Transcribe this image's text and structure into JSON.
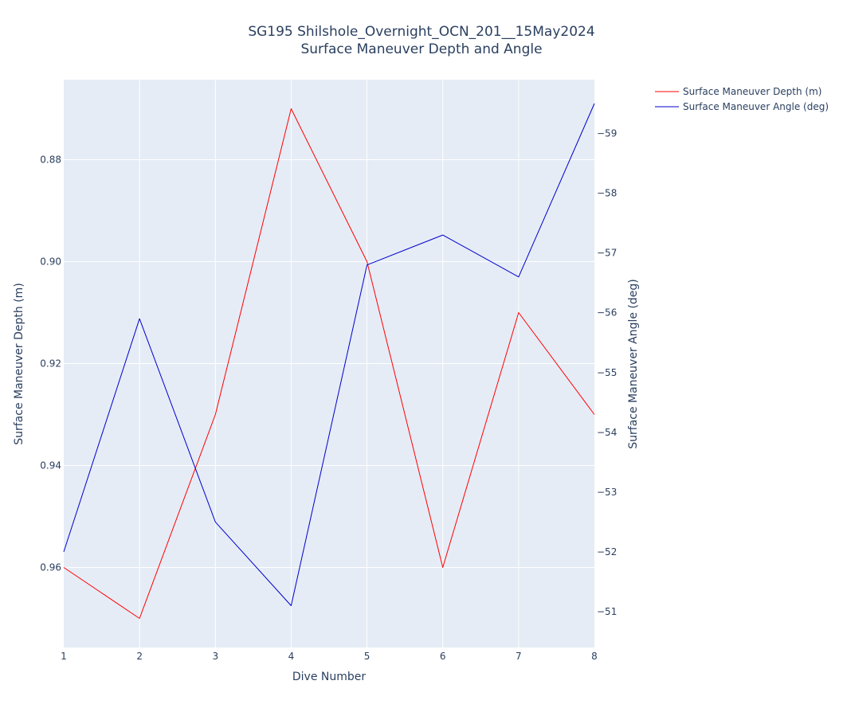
{
  "chart_data": {
    "type": "line",
    "title": "SG195 Shilshole_Overnight_OCN_201__15May2024",
    "subtitle": "Surface Maneuver Depth and Angle",
    "xlabel": "Dive Number",
    "ylabel_left": "Surface Maneuver Depth (m)",
    "ylabel_right": "Surface Maneuver Angle (deg)",
    "x": [
      1,
      2,
      3,
      4,
      5,
      6,
      7,
      8
    ],
    "xlim": [
      1,
      8
    ],
    "x_ticks": [
      "1",
      "2",
      "3",
      "4",
      "5",
      "6",
      "7",
      "8"
    ],
    "y_left_range": [
      0.9757,
      0.8643
    ],
    "y_left_reversed": true,
    "y_left_ticks": [
      0.88,
      0.9,
      0.92,
      0.94,
      0.96
    ],
    "y_left_tick_labels": [
      "0.88",
      "0.90",
      "0.92",
      "0.94",
      "0.96"
    ],
    "y_right_range": [
      -50.4,
      -59.9
    ],
    "y_right_reversed": true,
    "y_right_ticks": [
      -59,
      -58,
      -57,
      -56,
      -55,
      -54,
      -53,
      -52,
      -51
    ],
    "y_right_tick_labels": [
      "−59",
      "−58",
      "−57",
      "−56",
      "−55",
      "−54",
      "−53",
      "−52",
      "−51"
    ],
    "grid": true,
    "legend_position": "top-right outside",
    "series": [
      {
        "name": "Surface Maneuver Depth (m)",
        "axis": "left",
        "color": "#ff0000",
        "values": [
          0.96,
          0.97,
          0.93,
          0.87,
          0.9,
          0.96,
          0.91,
          0.93
        ]
      },
      {
        "name": "Surface Maneuver Angle (deg)",
        "axis": "right",
        "color": "#0000cc",
        "values": [
          -52.0,
          -55.9,
          -52.5,
          -51.1,
          -56.8,
          -57.3,
          -56.6,
          -59.5
        ]
      }
    ]
  }
}
